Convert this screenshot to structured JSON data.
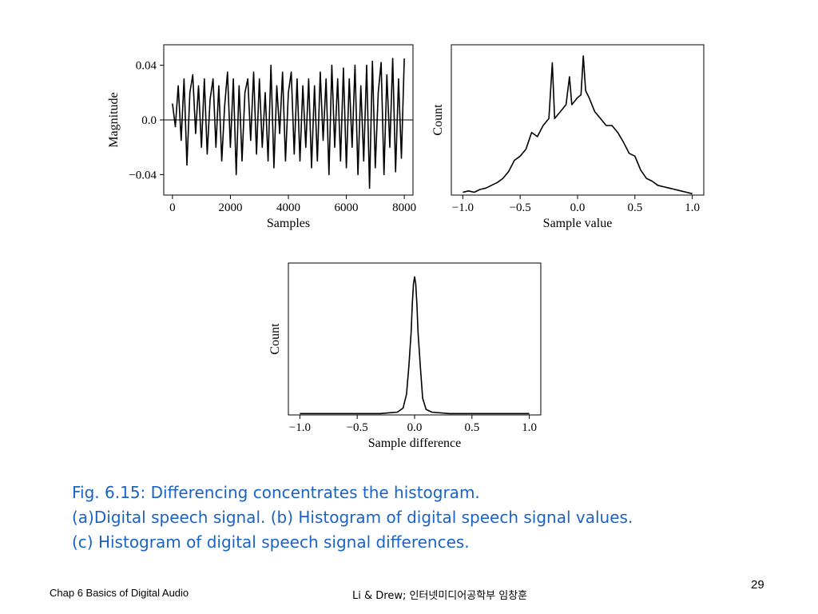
{
  "chart_data": [
    {
      "id": "a",
      "type": "line",
      "xlabel": "Samples",
      "ylabel": "Magnitude",
      "xlim": [
        -300,
        8300
      ],
      "ylim": [
        -0.055,
        0.055
      ],
      "xticks": [
        0,
        2000,
        4000,
        6000,
        8000
      ],
      "xtick_labels": [
        "0",
        "2000",
        "4000",
        "6000",
        "8000"
      ],
      "yticks": [
        0.04,
        0.0,
        -0.04
      ],
      "ytick_labels": [
        "0.04",
        "0.0",
        "−0.04"
      ],
      "zero_line": true,
      "series": [
        {
          "x": [
            0,
            100,
            200,
            300,
            400,
            500,
            600,
            700,
            800,
            900,
            1000,
            1100,
            1200,
            1300,
            1400,
            1500,
            1600,
            1700,
            1800,
            1900,
            2000,
            2100,
            2200,
            2300,
            2400,
            2500,
            2600,
            2700,
            2800,
            2900,
            3000,
            3100,
            3200,
            3300,
            3400,
            3500,
            3600,
            3700,
            3800,
            3900,
            4000,
            4100,
            4200,
            4300,
            4400,
            4500,
            4600,
            4700,
            4800,
            4900,
            5000,
            5100,
            5200,
            5300,
            5400,
            5500,
            5600,
            5700,
            5800,
            5900,
            6000,
            6100,
            6200,
            6300,
            6400,
            6500,
            6600,
            6700,
            6800,
            6900,
            7000,
            7100,
            7200,
            7300,
            7400,
            7500,
            7600,
            7700,
            7800,
            7900,
            8000
          ],
          "y": [
            0.012,
            -0.005,
            0.025,
            -0.015,
            0.03,
            -0.033,
            0.02,
            0.033,
            -0.01,
            0.025,
            -0.02,
            0.03,
            -0.025,
            0.015,
            0.03,
            -0.02,
            0.025,
            -0.03,
            0.01,
            0.035,
            -0.02,
            0.03,
            -0.04,
            0.025,
            -0.03,
            0.02,
            0.03,
            -0.015,
            0.035,
            -0.025,
            0.03,
            -0.02,
            0.02,
            -0.03,
            0.04,
            -0.035,
            0.025,
            -0.01,
            0.035,
            -0.03,
            0.02,
            0.035,
            -0.025,
            0.03,
            -0.03,
            0.025,
            -0.02,
            0.03,
            -0.035,
            0.025,
            -0.03,
            0.035,
            -0.015,
            0.03,
            -0.04,
            0.04,
            -0.02,
            0.03,
            -0.03,
            0.038,
            -0.035,
            0.03,
            -0.02,
            0.04,
            -0.04,
            0.025,
            -0.03,
            0.04,
            -0.05,
            0.043,
            -0.035,
            0.02,
            0.042,
            -0.04,
            0.033,
            -0.02,
            0.045,
            -0.038,
            0.03,
            -0.028,
            0.045
          ]
        }
      ]
    },
    {
      "id": "b",
      "type": "line",
      "xlabel": "Sample value",
      "ylabel": "Count",
      "xlim": [
        -1.1,
        1.1
      ],
      "ylim": [
        0,
        1.08
      ],
      "xticks": [
        -1.0,
        -0.5,
        0.0,
        0.5,
        1.0
      ],
      "xtick_labels": [
        "−1.0",
        "−0.5",
        "0.0",
        "0.5",
        "1.0"
      ],
      "yticks": [],
      "series": [
        {
          "x": [
            -1.0,
            -0.95,
            -0.9,
            -0.85,
            -0.8,
            -0.75,
            -0.7,
            -0.65,
            -0.6,
            -0.55,
            -0.5,
            -0.45,
            -0.4,
            -0.35,
            -0.3,
            -0.25,
            -0.22,
            -0.2,
            -0.15,
            -0.1,
            -0.07,
            -0.05,
            0.0,
            0.03,
            0.05,
            0.07,
            0.1,
            0.15,
            0.2,
            0.25,
            0.3,
            0.35,
            0.4,
            0.45,
            0.5,
            0.55,
            0.6,
            0.65,
            0.7,
            0.75,
            0.8,
            0.85,
            0.9,
            0.95,
            1.0
          ],
          "y": [
            0.02,
            0.03,
            0.02,
            0.04,
            0.05,
            0.07,
            0.09,
            0.12,
            0.17,
            0.25,
            0.28,
            0.33,
            0.45,
            0.42,
            0.5,
            0.55,
            0.95,
            0.55,
            0.6,
            0.65,
            0.85,
            0.65,
            0.7,
            0.72,
            1.0,
            0.75,
            0.7,
            0.6,
            0.55,
            0.5,
            0.5,
            0.45,
            0.38,
            0.3,
            0.28,
            0.18,
            0.12,
            0.1,
            0.07,
            0.06,
            0.05,
            0.04,
            0.03,
            0.02,
            0.01
          ]
        }
      ]
    },
    {
      "id": "c",
      "type": "line",
      "xlabel": "Sample difference",
      "ylabel": "Count",
      "xlim": [
        -1.1,
        1.1
      ],
      "ylim": [
        0,
        1.1
      ],
      "xticks": [
        -1.0,
        -0.5,
        0.0,
        0.5,
        1.0
      ],
      "xtick_labels": [
        "−1.0",
        "−0.5",
        "0.0",
        "0.5",
        "1.0"
      ],
      "yticks": [],
      "series": [
        {
          "x": [
            -1.0,
            -0.3,
            -0.15,
            -0.1,
            -0.07,
            -0.05,
            -0.03,
            -0.02,
            -0.01,
            0.0,
            0.01,
            0.02,
            0.03,
            0.05,
            0.07,
            0.1,
            0.15,
            0.3,
            1.0
          ],
          "y": [
            0.01,
            0.01,
            0.02,
            0.05,
            0.15,
            0.35,
            0.6,
            0.8,
            0.95,
            1.0,
            0.95,
            0.8,
            0.6,
            0.35,
            0.12,
            0.04,
            0.02,
            0.01,
            0.01
          ]
        }
      ]
    }
  ],
  "caption": {
    "line1": "Fig. 6.15: Differencing concentrates the histogram.",
    "line2": "(a)Digital speech signal. (b) Histogram of digital speech signal values.",
    "line3": "(c) Histogram of digital speech signal differences."
  },
  "footer": {
    "left": "Chap 6  Basics of Digital Audio",
    "center": "Li & Drew; 인터넷미디어공학부 임창훈",
    "page_number": "29"
  }
}
